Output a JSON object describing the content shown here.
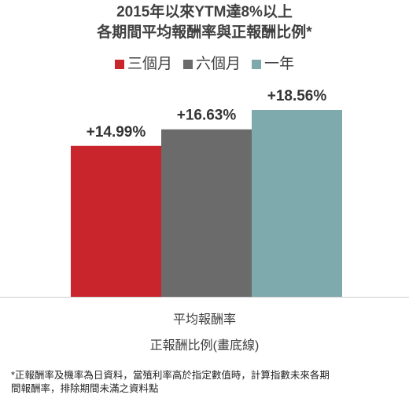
{
  "chart_data": {
    "type": "bar",
    "title_line1": "2015年以來YTM達8%以上",
    "title_line2": "各期間平均報酬率與正報酬比例*",
    "categories": [
      "三個月",
      "六個月",
      "一年"
    ],
    "values": [
      14.99,
      16.63,
      18.56
    ],
    "data_labels": [
      "+14.99%",
      "+16.63%",
      "+18.56%"
    ],
    "colors": [
      "#c9252c",
      "#6b6b6b",
      "#7ea9ad"
    ],
    "legend_position": "top",
    "xlabel_line1": "平均報酬率",
    "xlabel_line2": "正報酬比例(畫底線)",
    "ylim": [
      0,
      18.56
    ],
    "grid": false
  },
  "footnote": {
    "line1": "*正報酬率及機率為日資料，當殖利率高於指定數值時，計算指數未來各期",
    "line2": "間報酬率，排除期間未滿之資料點"
  }
}
